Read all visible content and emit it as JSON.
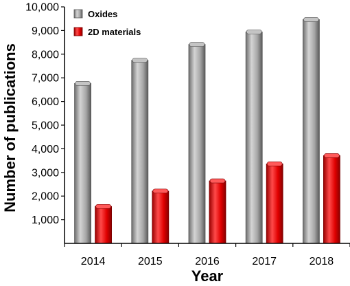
{
  "chart_data": {
    "type": "bar",
    "categories": [
      "2014",
      "2015",
      "2016",
      "2017",
      "2018"
    ],
    "series": [
      {
        "name": "Oxides",
        "values": [
          6850,
          7830,
          8500,
          9030,
          9550
        ],
        "color": "#a8a8a8"
      },
      {
        "name": "2D materials",
        "values": [
          1650,
          2300,
          2730,
          3450,
          3800
        ],
        "color": "#ee0000"
      }
    ],
    "title": "",
    "xlabel": "Year",
    "ylabel": "Number of publications",
    "ylim": [
      0,
      10000
    ],
    "yticks": [
      1000,
      2000,
      3000,
      4000,
      5000,
      6000,
      7000,
      8000,
      9000,
      10000
    ],
    "ytick_labels": [
      "1,000",
      "2,000",
      "3,000",
      "4,000",
      "5,000",
      "6,000",
      "7,000",
      "8,000",
      "9,000",
      "10,000"
    ],
    "grid": false,
    "legend_position": "top-left",
    "bar_style": "3d-cylinder"
  }
}
